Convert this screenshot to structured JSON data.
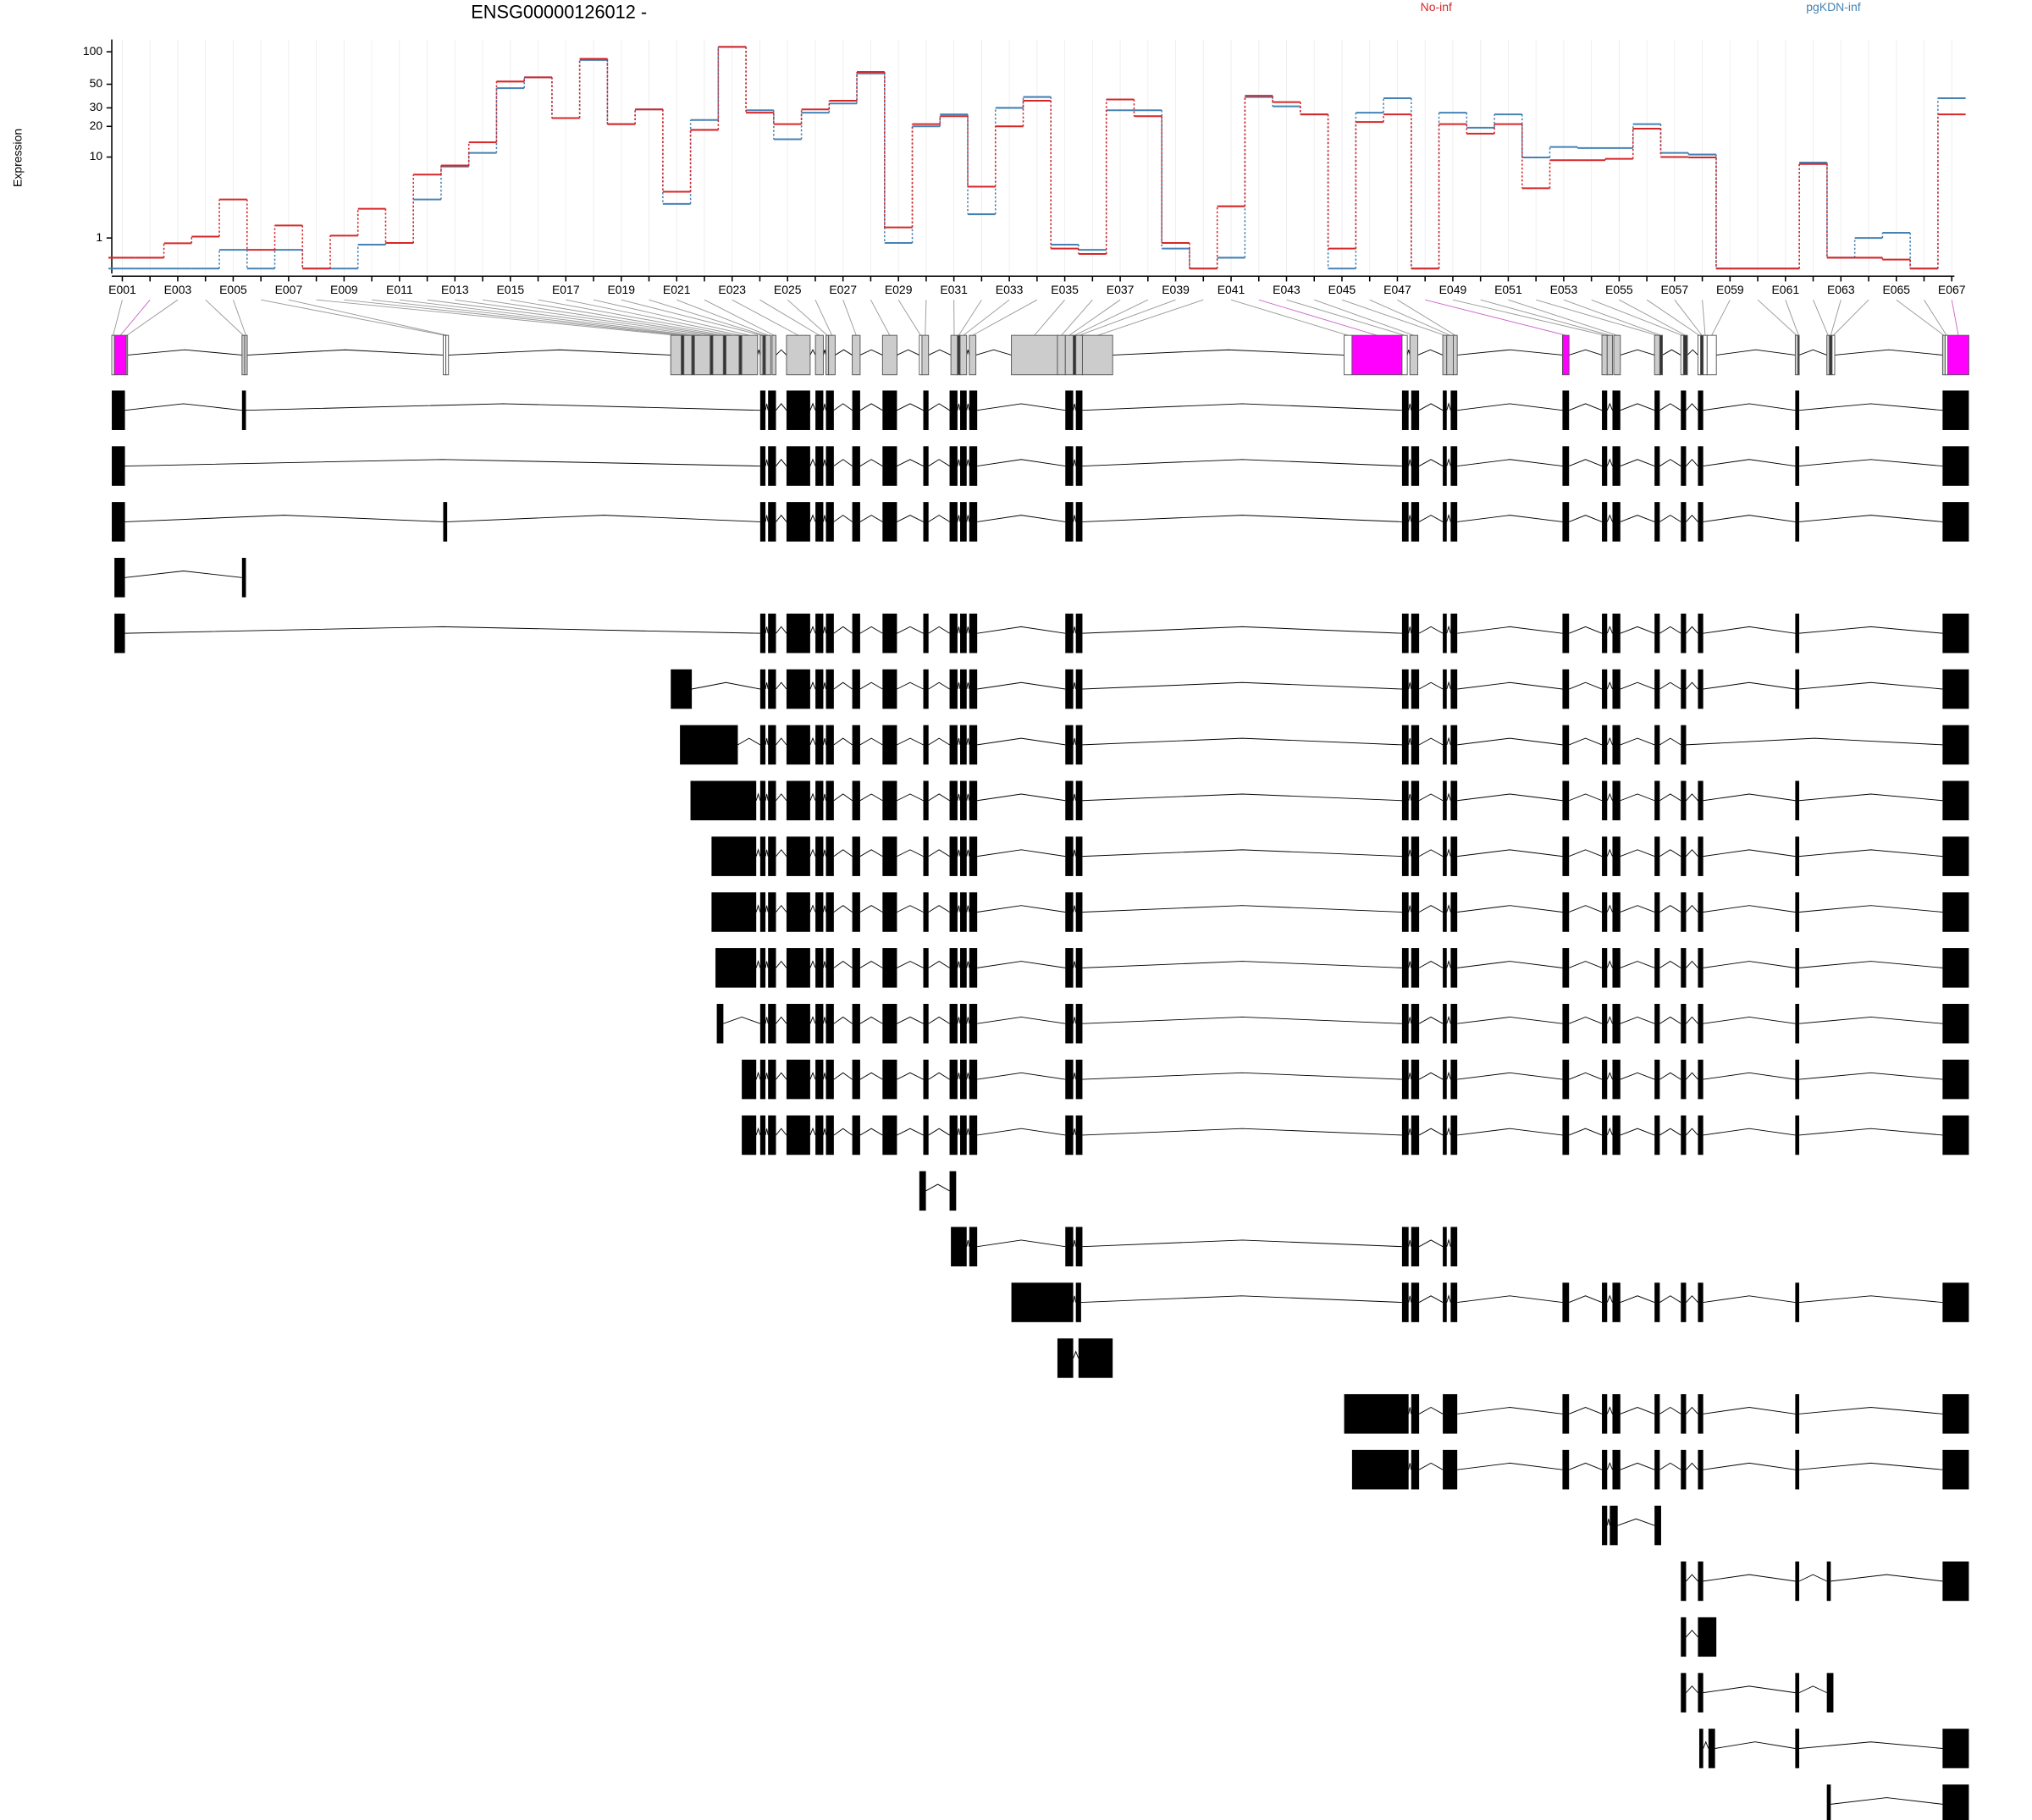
{
  "chart_data": [
    {
      "type": "line",
      "title": "ENSG00000126012 -",
      "y_label": "Expression",
      "categories": [
        "E001",
        null,
        "E003",
        null,
        "E005",
        null,
        "E007",
        null,
        "E009",
        null,
        "E011",
        null,
        "E013",
        null,
        "E015",
        null,
        "E017",
        null,
        "E019",
        null,
        "E021",
        null,
        "E023",
        null,
        "E025",
        null,
        "E027",
        null,
        "E029",
        null,
        "E031",
        null,
        "E033",
        null,
        "E035",
        null,
        "E037",
        null,
        "E039",
        null,
        "E041",
        null,
        "E043",
        null,
        "E045",
        null,
        "E047",
        null,
        "E049",
        null,
        "E051",
        null,
        "E053",
        null,
        "E055",
        null,
        "E057",
        null,
        "E059",
        null,
        "E061",
        null,
        "E063",
        null,
        "E065",
        null,
        "E067"
      ],
      "series": [
        {
          "name": "No-inf",
          "color": "#d62728",
          "values": [
            0.32,
            0.32,
            0.79,
            1.06,
            3.5,
            0.56,
            1.6,
            0.05,
            1.1,
            2.7,
            0.8,
            6.6,
            8.2,
            14,
            53,
            58,
            24,
            86,
            21,
            29,
            4.3,
            18.5,
            111,
            27,
            21,
            29,
            35,
            65,
            1.5,
            21,
            25,
            4.9,
            20,
            35,
            0.6,
            0.43,
            36,
            25,
            0.8,
            0.05,
            2.9,
            39,
            34,
            26,
            0.6,
            22,
            26,
            0.05,
            21,
            17,
            21,
            4.7,
            9.3,
            9.3,
            9.6,
            19,
            10,
            9.9,
            0.05,
            0.05,
            0.05,
            8.5,
            0.32,
            0.32,
            0.27,
            0.05,
            26
          ]
        },
        {
          "name": "pgKDN-inf",
          "color": "#4682b4",
          "values": [
            0.05,
            0.05,
            0.05,
            0.05,
            0.56,
            0.05,
            0.56,
            0.05,
            0.05,
            0.74,
            0.8,
            3.5,
            8,
            11,
            46,
            58,
            24,
            84,
            21,
            29,
            3.1,
            23,
            111,
            28.5,
            15,
            27,
            33,
            63,
            0.8,
            20,
            26,
            2.3,
            30,
            38,
            0.74,
            0.56,
            28.5,
            28.5,
            0.6,
            0.05,
            0.32,
            38,
            31,
            26,
            0.05,
            27,
            37,
            0.05,
            27,
            19.4,
            26,
            9.9,
            12.6,
            12.3,
            12.3,
            21,
            11,
            10.6,
            0.05,
            0.05,
            0.05,
            8.8,
            0.32,
            1.0,
            1.23,
            0.05,
            37
          ]
        }
      ],
      "ylim": [
        0,
        130
      ],
      "yticks": [
        1,
        10,
        20,
        30,
        50,
        100
      ],
      "log_scale": true,
      "log_pseudocount": 1,
      "grid": true,
      "step": true
    },
    {
      "type": "gene-model",
      "xlim": [
        53176283,
        53225422
      ],
      "xticks": [
        53176283,
        53181743,
        53187203,
        53192663,
        53198123,
        53203582,
        53209042,
        53214502,
        53219962,
        53225422
      ]
    }
  ]
}
